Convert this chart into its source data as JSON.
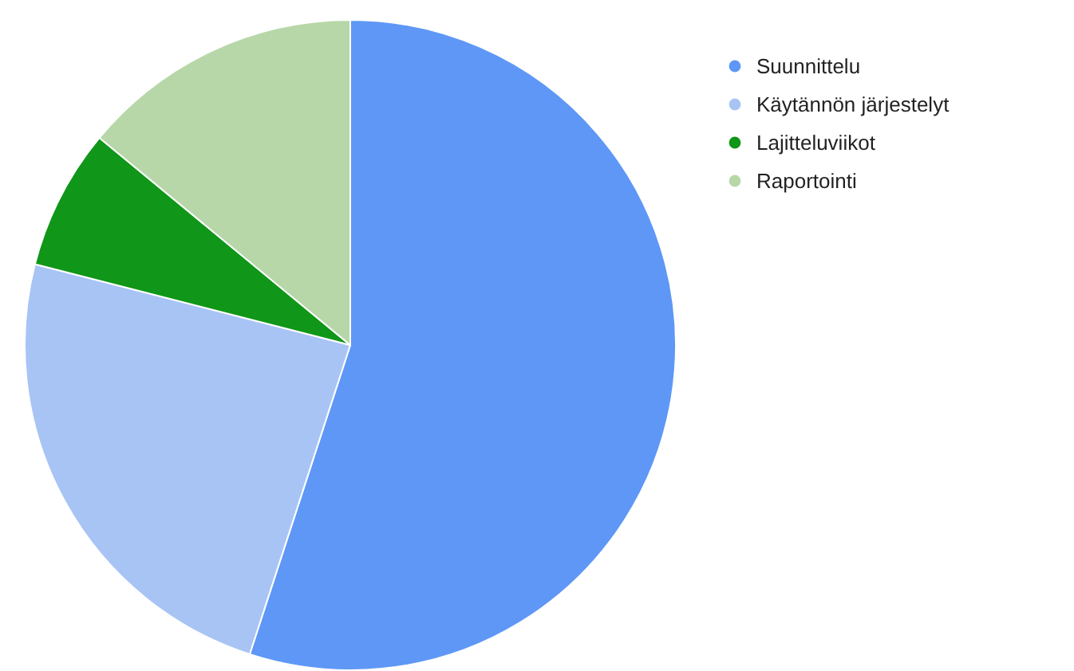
{
  "chart_data": {
    "type": "pie",
    "categories": [
      "Suunnittelu",
      "Käytännön järjestelyt",
      "Lajitteluviikot",
      "Raportointi"
    ],
    "values": [
      55,
      24,
      7,
      14
    ],
    "colors": [
      "#5e97f6",
      "#a8c4f5",
      "#109618",
      "#b7d7a8"
    ],
    "legend": "top right"
  }
}
